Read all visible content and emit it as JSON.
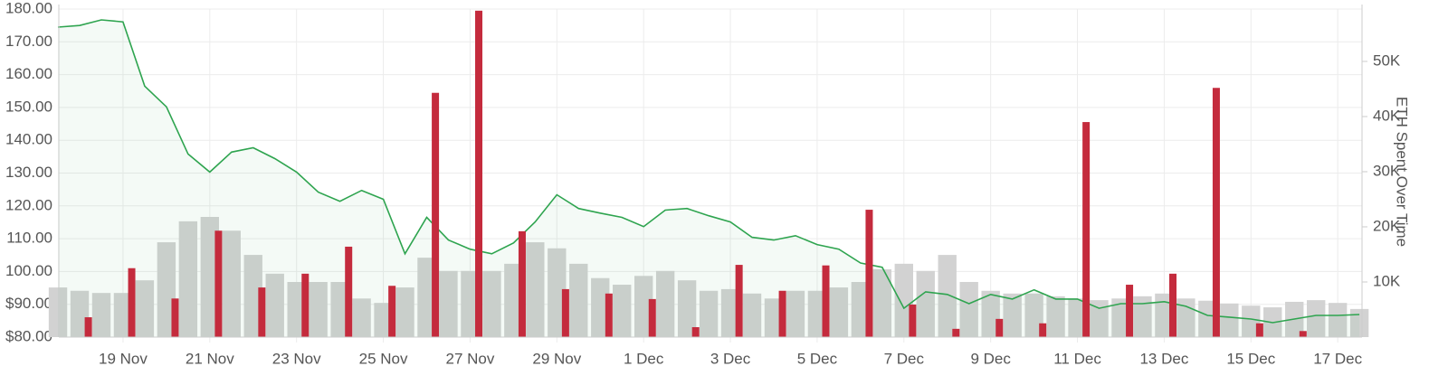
{
  "chart_data": {
    "type": "combo",
    "y2_label": "ETH Spent Over Time",
    "xlim": [
      17.52,
      47.56
    ],
    "xticks": [
      {
        "value": 19,
        "label": "19 Nov"
      },
      {
        "value": 21,
        "label": "21 Nov"
      },
      {
        "value": 23,
        "label": "23 Nov"
      },
      {
        "value": 25,
        "label": "25 Nov"
      },
      {
        "value": 27,
        "label": "27 Nov"
      },
      {
        "value": 29,
        "label": "29 Nov"
      },
      {
        "value": 31,
        "label": "1 Dec"
      },
      {
        "value": 33,
        "label": "3 Dec"
      },
      {
        "value": 35,
        "label": "5 Dec"
      },
      {
        "value": 37,
        "label": "7 Dec"
      },
      {
        "value": 39,
        "label": "9 Dec"
      },
      {
        "value": 41,
        "label": "11 Dec"
      },
      {
        "value": 43,
        "label": "13 Dec"
      },
      {
        "value": 45,
        "label": "15 Dec"
      },
      {
        "value": 47,
        "label": "17 Dec"
      }
    ],
    "ylim": [
      80,
      180
    ],
    "yticks": [
      {
        "value": 80,
        "label": "$80.00"
      },
      {
        "value": 90,
        "label": "$90.00"
      },
      {
        "value": 100,
        "label": "100.00"
      },
      {
        "value": 110,
        "label": "110.00"
      },
      {
        "value": 120,
        "label": "120.00"
      },
      {
        "value": 130,
        "label": "130.00"
      },
      {
        "value": 140,
        "label": "140.00"
      },
      {
        "value": 150,
        "label": "150.00"
      },
      {
        "value": 160,
        "label": "160.00"
      },
      {
        "value": 170,
        "label": "170.00"
      },
      {
        "value": 180,
        "label": "180.00"
      }
    ],
    "y2lim": [
      0,
      59500
    ],
    "y2ticks": [
      {
        "value": 10000,
        "label": "10K"
      },
      {
        "value": 20000,
        "label": "20K"
      },
      {
        "value": 30000,
        "label": "30K"
      },
      {
        "value": 40000,
        "label": "40K"
      },
      {
        "value": 50000,
        "label": "50K"
      }
    ],
    "grid": true,
    "series": [
      {
        "type": "bar",
        "axis": "y2",
        "color": "#d2d2d2",
        "x": [
          17.5,
          18,
          18.5,
          19,
          19.5,
          20,
          20.5,
          21,
          21.5,
          22,
          22.5,
          23,
          23.5,
          24,
          24.5,
          25,
          25.5,
          26,
          26.5,
          27,
          27.5,
          28,
          28.5,
          29,
          29.5,
          30,
          30.5,
          31,
          31.5,
          32,
          32.5,
          33,
          33.5,
          34,
          34.5,
          35,
          35.5,
          36,
          36.5,
          37,
          37.5,
          38,
          38.5,
          39,
          39.5,
          40,
          40.5,
          41,
          41.5,
          42,
          42.5,
          43,
          43.5,
          44,
          44.5,
          45,
          45.5,
          46,
          46.5,
          47,
          47.5
        ],
        "values": [
          9000,
          8400,
          8000,
          8000,
          10300,
          17200,
          21000,
          21800,
          19300,
          14900,
          11500,
          10000,
          10000,
          10000,
          7000,
          6200,
          9000,
          14400,
          12000,
          12000,
          12000,
          13300,
          17200,
          16100,
          13300,
          10700,
          9500,
          11100,
          12000,
          10300,
          8400,
          8700,
          7900,
          7000,
          8400,
          8400,
          9000,
          10000,
          12300,
          13300,
          12000,
          14900,
          10000,
          8400,
          7900,
          7900,
          7400,
          7000,
          6700,
          7000,
          7400,
          7900,
          7000,
          6600,
          6100,
          5700,
          5400,
          6400,
          6700,
          6200,
          5100
        ]
      },
      {
        "type": "area",
        "color": "#2ea44f",
        "x": [
          17.5,
          18,
          18.5,
          19,
          19.5,
          20,
          20.5,
          21,
          21.5,
          22,
          22.5,
          23,
          23.5,
          24,
          24.5,
          25,
          25.5,
          26,
          26.5,
          27,
          27.5,
          28,
          28.5,
          29,
          29.5,
          30,
          30.5,
          31,
          31.5,
          32,
          32.5,
          33,
          33.5,
          34,
          34.5,
          35,
          35.5,
          36,
          36.5,
          37,
          37.5,
          38,
          38.5,
          39,
          39.5,
          40,
          40.5,
          41,
          41.5,
          42,
          42.5,
          43,
          43.5,
          44,
          44.5,
          45,
          45.5,
          46,
          46.5,
          47,
          47.5
        ],
        "values": [
          174.5,
          175,
          176.7,
          176.1,
          156.5,
          150.2,
          135.8,
          130.3,
          136.4,
          137.7,
          134.4,
          130.3,
          124.2,
          121.4,
          124.7,
          122,
          105.4,
          116.5,
          109.6,
          106.8,
          105.4,
          108.7,
          115.1,
          123.4,
          119.2,
          117.8,
          116.5,
          113.7,
          118.7,
          119.2,
          117,
          115.1,
          110.4,
          109.6,
          110.9,
          108.2,
          106.8,
          102.6,
          101.3,
          88.8,
          93.8,
          93,
          90.2,
          93,
          91.6,
          94.4,
          91.6,
          91.6,
          88.8,
          90.2,
          90.2,
          90.8,
          89.4,
          86.6,
          86.1,
          85.5,
          84.4,
          85.5,
          86.6,
          86.6,
          86.9
        ]
      },
      {
        "type": "bar",
        "axis": "y2",
        "color": "#c42b3d",
        "x": [
          18.2,
          19.2,
          20.2,
          21.2,
          22.2,
          23.2,
          24.2,
          25.2,
          26.2,
          27.2,
          28.2,
          29.2,
          30.2,
          31.2,
          32.2,
          33.2,
          34.2,
          35.2,
          36.2,
          37.2,
          38.2,
          39.2,
          40.2,
          41.2,
          42.2,
          43.2,
          44.2,
          45.2,
          46.2
        ],
        "values": [
          3600,
          12500,
          7000,
          19300,
          9000,
          11500,
          16400,
          9300,
          44300,
          59200,
          19200,
          8700,
          7900,
          6900,
          1800,
          13100,
          8400,
          13000,
          23100,
          5900,
          1500,
          3300,
          2500,
          39000,
          9500,
          11500,
          45200,
          2500,
          1100
        ]
      }
    ]
  }
}
